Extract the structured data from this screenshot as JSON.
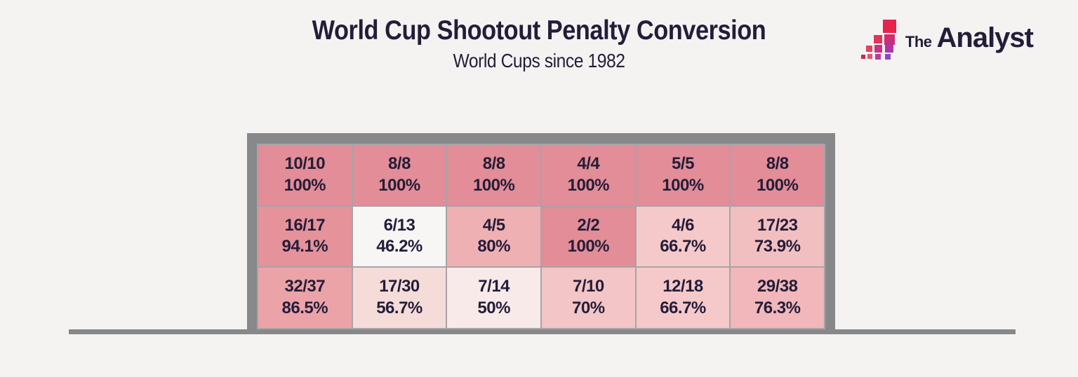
{
  "header": {
    "title": "World Cup Shootout Penalty Conversion",
    "subtitle": "World Cups since 1982"
  },
  "logo": {
    "the": "The",
    "analyst": "Analyst",
    "icon_colors": [
      "#e8224b",
      "#e23358",
      "#cd2d74",
      "#dd4560",
      "#c43389",
      "#ad35a6",
      "#c92b47",
      "#e05578",
      "#b93d98",
      "#8f46cd"
    ]
  },
  "colors": {
    "bg": "#f4f3f2",
    "ink": "#241d39",
    "frame": "#868889",
    "gridline": "#a8a4a6",
    "ground": "#868889"
  },
  "chart_data": {
    "type": "heatmap",
    "title": "World Cup Shootout Penalty Conversion",
    "subtitle": "World Cups since 1982",
    "grid_shape": [
      3,
      6
    ],
    "legend_position": "none",
    "cells": [
      {
        "row": 0,
        "col": 0,
        "made": 10,
        "taken": 10,
        "label": "10/10",
        "pct": "100%",
        "color": "#e28d97"
      },
      {
        "row": 0,
        "col": 1,
        "made": 8,
        "taken": 8,
        "label": "8/8",
        "pct": "100%",
        "color": "#e28d97"
      },
      {
        "row": 0,
        "col": 2,
        "made": 8,
        "taken": 8,
        "label": "8/8",
        "pct": "100%",
        "color": "#e28d97"
      },
      {
        "row": 0,
        "col": 3,
        "made": 4,
        "taken": 4,
        "label": "4/4",
        "pct": "100%",
        "color": "#e28d97"
      },
      {
        "row": 0,
        "col": 4,
        "made": 5,
        "taken": 5,
        "label": "5/5",
        "pct": "100%",
        "color": "#e28d97"
      },
      {
        "row": 0,
        "col": 5,
        "made": 8,
        "taken": 8,
        "label": "8/8",
        "pct": "100%",
        "color": "#e28d97"
      },
      {
        "row": 1,
        "col": 0,
        "made": 16,
        "taken": 17,
        "label": "16/17",
        "pct": "94.1%",
        "color": "#e5929b"
      },
      {
        "row": 1,
        "col": 1,
        "made": 6,
        "taken": 13,
        "label": "6/13",
        "pct": "46.2%",
        "color": "#f8f5f5"
      },
      {
        "row": 1,
        "col": 2,
        "made": 4,
        "taken": 5,
        "label": "4/5",
        "pct": "80%",
        "color": "#efb0b4"
      },
      {
        "row": 1,
        "col": 3,
        "made": 2,
        "taken": 2,
        "label": "2/2",
        "pct": "100%",
        "color": "#e28d97"
      },
      {
        "row": 1,
        "col": 4,
        "made": 4,
        "taken": 6,
        "label": "4/6",
        "pct": "66.7%",
        "color": "#f5c9c9"
      },
      {
        "row": 1,
        "col": 5,
        "made": 17,
        "taken": 23,
        "label": "17/23",
        "pct": "73.9%",
        "color": "#f2bfc1"
      },
      {
        "row": 2,
        "col": 0,
        "made": 32,
        "taken": 37,
        "label": "32/37",
        "pct": "86.5%",
        "color": "#eba3a8"
      },
      {
        "row": 2,
        "col": 1,
        "made": 17,
        "taken": 30,
        "label": "17/30",
        "pct": "56.7%",
        "color": "#f5dcd9"
      },
      {
        "row": 2,
        "col": 2,
        "made": 7,
        "taken": 14,
        "label": "7/14",
        "pct": "50%",
        "color": "#f7eae8"
      },
      {
        "row": 2,
        "col": 3,
        "made": 7,
        "taken": 10,
        "label": "7/10",
        "pct": "70%",
        "color": "#f4c5c6"
      },
      {
        "row": 2,
        "col": 4,
        "made": 12,
        "taken": 18,
        "label": "12/18",
        "pct": "66.7%",
        "color": "#f5c9c9"
      },
      {
        "row": 2,
        "col": 5,
        "made": 29,
        "taken": 38,
        "label": "29/38",
        "pct": "76.3%",
        "color": "#f1b7ba"
      }
    ]
  }
}
